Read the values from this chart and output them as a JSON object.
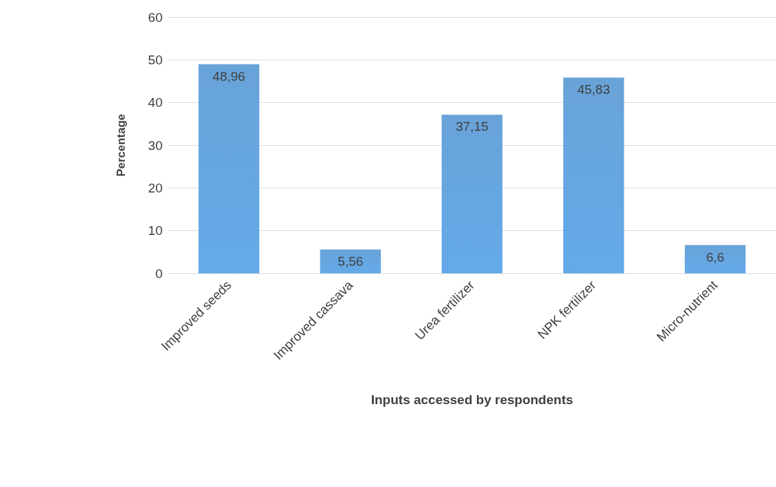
{
  "chart_data": {
    "type": "bar",
    "xlabel": "Inputs accessed by respondents",
    "ylabel": "Percentage",
    "categories": [
      "Improved seeds",
      "Improved cassava",
      "Urea fertilizer",
      "NPK fertilizer",
      "Micro-nutrient"
    ],
    "values": [
      48.96,
      5.56,
      37.15,
      45.83,
      6.6
    ],
    "value_labels": [
      "48,96",
      "5,56",
      "37,15",
      "45,83",
      "6,6"
    ],
    "color": "#5b9bd5",
    "ylim": [
      0,
      60
    ],
    "yticks": [
      0,
      10,
      20,
      30,
      40,
      50,
      60
    ],
    "grid": "y"
  }
}
